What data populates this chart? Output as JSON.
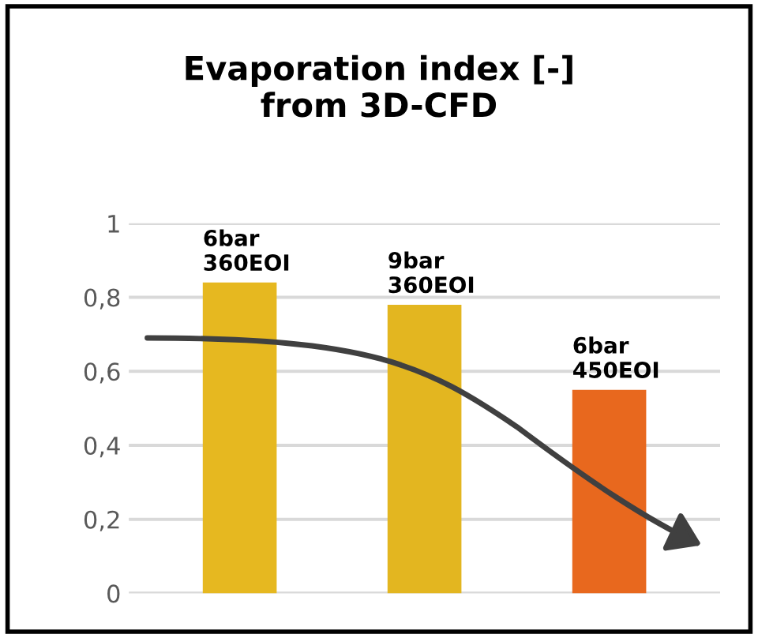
{
  "chart_data": {
    "type": "bar",
    "title": "Evaporation index [-]\nfrom 3D-CFD",
    "categories": [
      "6bar\n360EOI",
      "9bar\n360EOI",
      "6bar\n450EOI"
    ],
    "values": [
      0.84,
      0.78,
      0.55
    ],
    "colors": [
      "#e6b820",
      "#e3b620",
      "#e8681e"
    ],
    "ylim": [
      0,
      1
    ],
    "yticks": [
      {
        "value": 0,
        "label": "0"
      },
      {
        "value": 0.2,
        "label": "0,2"
      },
      {
        "value": 0.4,
        "label": "0,4"
      },
      {
        "value": 0.6,
        "label": "0,6"
      },
      {
        "value": 0.8,
        "label": "0,8"
      },
      {
        "value": 1,
        "label": "1"
      }
    ],
    "grid": "y"
  }
}
